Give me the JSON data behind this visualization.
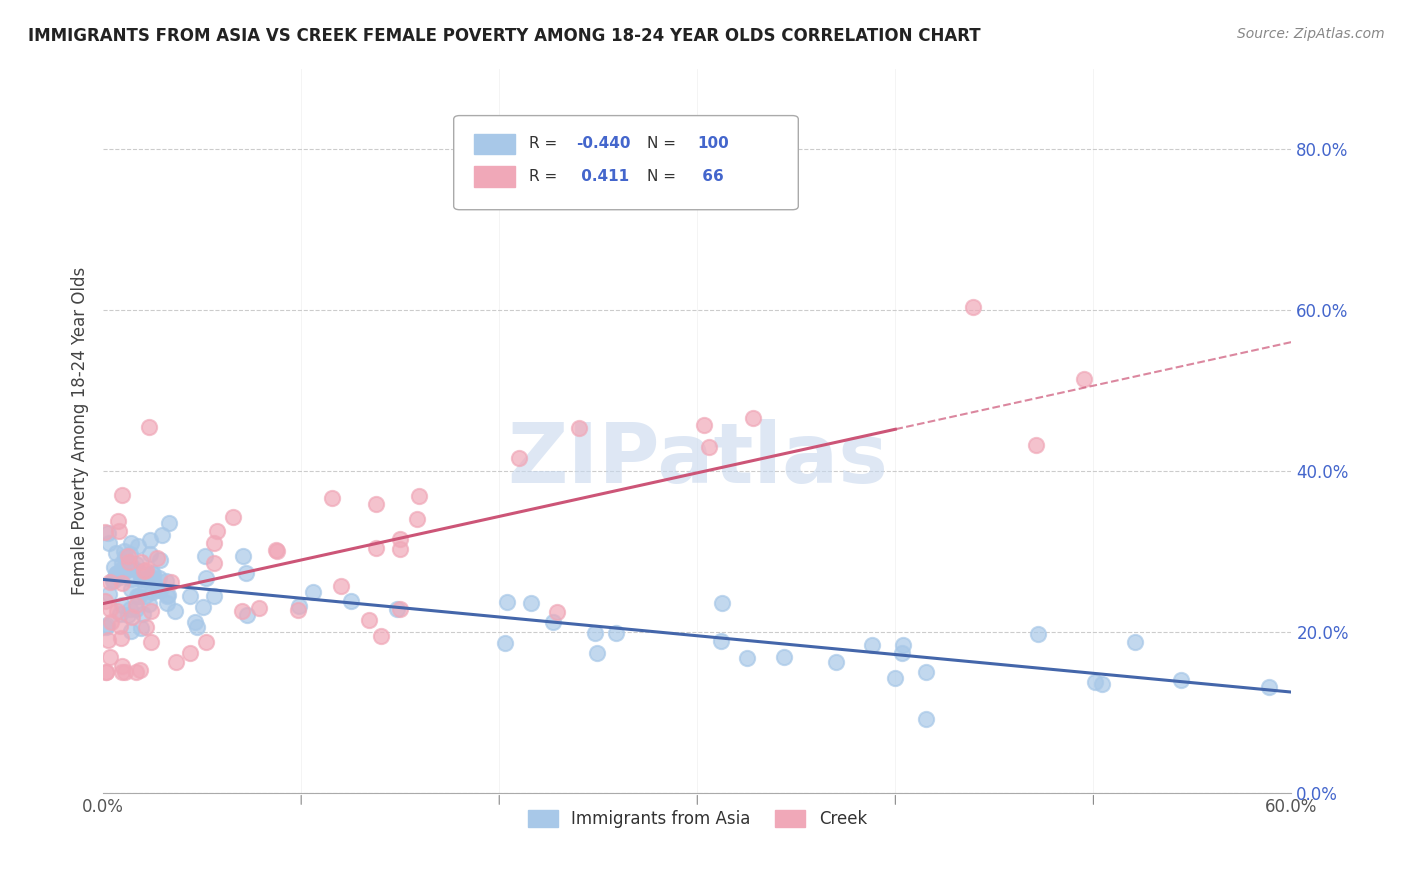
{
  "title": "IMMIGRANTS FROM ASIA VS CREEK FEMALE POVERTY AMONG 18-24 YEAR OLDS CORRELATION CHART",
  "source": "Source: ZipAtlas.com",
  "ylabel": "Female Poverty Among 18-24 Year Olds",
  "xlim": [
    0.0,
    0.6
  ],
  "ylim": [
    0.0,
    0.9
  ],
  "xticks": [
    0.0,
    0.6
  ],
  "xticklabels": [
    "0.0%",
    "60.0%"
  ],
  "yticks": [
    0.0,
    0.2,
    0.4,
    0.6,
    0.8
  ],
  "yticklabels": [
    "0.0%",
    "20.0%",
    "40.0%",
    "60.0%",
    "80.0%"
  ],
  "blue_R": -0.44,
  "blue_N": 100,
  "pink_R": 0.411,
  "pink_N": 66,
  "blue_color": "#a8c8e8",
  "pink_color": "#f0a8b8",
  "blue_line_color": "#4466aa",
  "pink_line_color": "#cc5577",
  "watermark": "ZIPatlas",
  "watermark_color": "#c8d8ee",
  "legend_label_blue": "Immigrants from Asia",
  "legend_label_pink": "Creek",
  "blue_line_x0": 0.0,
  "blue_line_y0": 0.265,
  "blue_line_x1": 0.6,
  "blue_line_y1": 0.125,
  "pink_line_x0": 0.0,
  "pink_line_y0": 0.235,
  "pink_line_x1": 0.6,
  "pink_line_y1": 0.56,
  "pink_line_dashed_start": 0.4
}
